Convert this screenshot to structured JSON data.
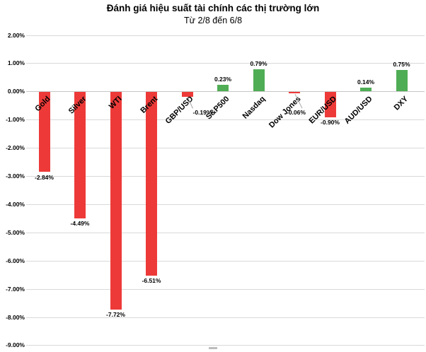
{
  "chart_data": {
    "type": "bar",
    "title": "Đánh giá hiệu suất tài chính các thị trường lớn",
    "subtitle": "Từ 2/8 đến 6/8",
    "points": [
      {
        "category": "Gold",
        "value": -2.84,
        "label": "-2.84%"
      },
      {
        "category": "Silver",
        "value": -4.49,
        "label": "-4.49%"
      },
      {
        "category": "WTI",
        "value": -7.72,
        "label": "-7.72%"
      },
      {
        "category": "Brent",
        "value": -6.51,
        "label": "-6.51%"
      },
      {
        "category": "GBP/USD",
        "value": -0.19,
        "label": "-0.19%",
        "callout": {
          "line_dx": 8,
          "line_dy": 18,
          "label_dx": 8
        }
      },
      {
        "category": "S&P500",
        "value": 0.23,
        "label": "0.23%"
      },
      {
        "category": "Nasdaq",
        "value": 0.79,
        "label": "0.79%"
      },
      {
        "category": "Dow Jones",
        "value": -0.06,
        "label": "-0.06%",
        "callout": {
          "line_dx": 11,
          "line_dy": 23,
          "label_dx": -11
        }
      },
      {
        "category": "EUR/USD",
        "value": -0.9,
        "label": "-0.90%"
      },
      {
        "category": "AUD/USD",
        "value": 0.14,
        "label": "0.14%"
      },
      {
        "category": "DXY",
        "value": 0.75,
        "label": "0.75%"
      }
    ],
    "y_axis": {
      "min": -9,
      "max": 2,
      "step": 1,
      "tick_labels": [
        "2.00%",
        "1.00%",
        "0.00%",
        "-1.00%",
        "-2.00%",
        "-3.00%",
        "-4.00%",
        "-5.00%",
        "-6.00%",
        "-7.00%",
        "-8.00%",
        "-9.00%"
      ]
    },
    "colors": {
      "positive": "#4FAD55",
      "negative": "#ED3A38",
      "gridline": "#D9D9D9",
      "zero_line": "#C6C6C6",
      "leader_line": "#A6A6A6",
      "text": "#000000"
    },
    "layout": {
      "grid": true,
      "ylim": [
        -9,
        2
      ],
      "category_label_rotation": -45,
      "legend": "cropped-bottom-center"
    }
  }
}
